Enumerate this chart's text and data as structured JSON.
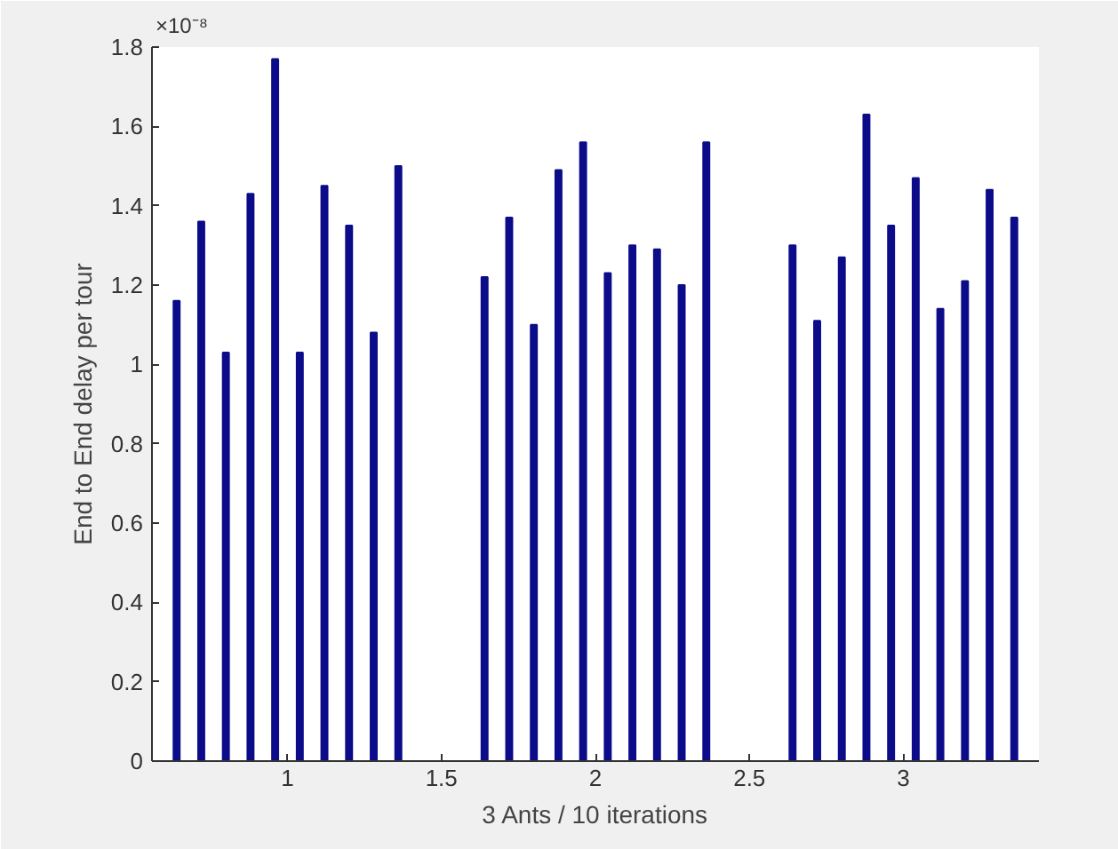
{
  "chart_data": {
    "type": "bar",
    "xlabel": "3 Ants / 10 iterations",
    "ylabel": "End to End delay per tour",
    "annotations": [
      "×10⁻⁸"
    ],
    "x": [
      0.64,
      0.72,
      0.8,
      0.88,
      0.96,
      1.04,
      1.12,
      1.2,
      1.28,
      1.36,
      1.64,
      1.72,
      1.8,
      1.88,
      1.96,
      2.04,
      2.12,
      2.2,
      2.28,
      2.36,
      2.64,
      2.72,
      2.8,
      2.88,
      2.96,
      3.04,
      3.12,
      3.2,
      3.28,
      3.36
    ],
    "values": [
      1.16,
      1.36,
      1.03,
      1.43,
      1.77,
      1.03,
      1.45,
      1.35,
      1.08,
      1.5,
      1.22,
      1.37,
      1.1,
      1.49,
      1.56,
      1.23,
      1.3,
      1.29,
      1.2,
      1.56,
      1.3,
      1.11,
      1.27,
      1.63,
      1.35,
      1.47,
      1.14,
      1.21,
      1.44,
      1.37
    ],
    "color": "#0c0c8a",
    "xlim": [
      0.56,
      3.44
    ],
    "ylim": [
      0,
      1.8
    ],
    "xticks": [
      1,
      1.5,
      2,
      2.5,
      3
    ],
    "yticks": [
      0,
      0.2,
      0.4,
      0.6,
      0.8,
      1,
      1.2,
      1.4,
      1.6,
      1.8
    ],
    "grid": false
  }
}
